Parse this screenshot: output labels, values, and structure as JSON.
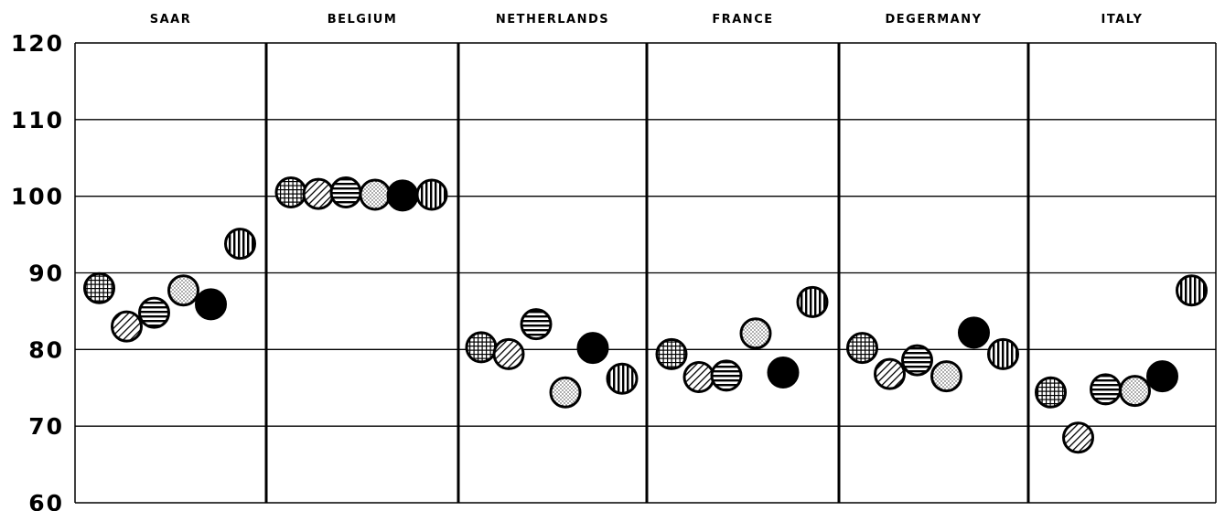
{
  "chart_data": {
    "type": "scatter",
    "title": "",
    "xlabel": "",
    "ylabel": "",
    "ylim": [
      60,
      120
    ],
    "yticks": [
      60,
      70,
      80,
      90,
      100,
      110,
      120
    ],
    "grid": true,
    "categories": [
      "SAAR",
      "BELGIUM",
      "NETHERLANDS",
      "FRANCE",
      "DEGERMANY",
      "ITALY"
    ],
    "series": [
      {
        "pattern": "crosshatch",
        "values": [
          88,
          100.5,
          80.3,
          79.4,
          80.2,
          74.4
        ]
      },
      {
        "pattern": "diagonal",
        "values": [
          83,
          100.3,
          79.4,
          76.4,
          76.8,
          68.5
        ]
      },
      {
        "pattern": "horizontal",
        "values": [
          84.8,
          100.5,
          83.3,
          76.6,
          78.6,
          74.8
        ]
      },
      {
        "pattern": "dotted",
        "values": [
          87.7,
          100.2,
          74.4,
          82.1,
          76.5,
          74.6
        ]
      },
      {
        "pattern": "solid",
        "values": [
          85.9,
          100.1,
          80.2,
          77,
          82.2,
          76.5
        ]
      },
      {
        "pattern": "vertical",
        "values": [
          93.8,
          100.2,
          76.2,
          86.2,
          79.4,
          87.7
        ]
      }
    ]
  },
  "colors": {
    "ink": "#000000",
    "background": "#ffffff"
  }
}
